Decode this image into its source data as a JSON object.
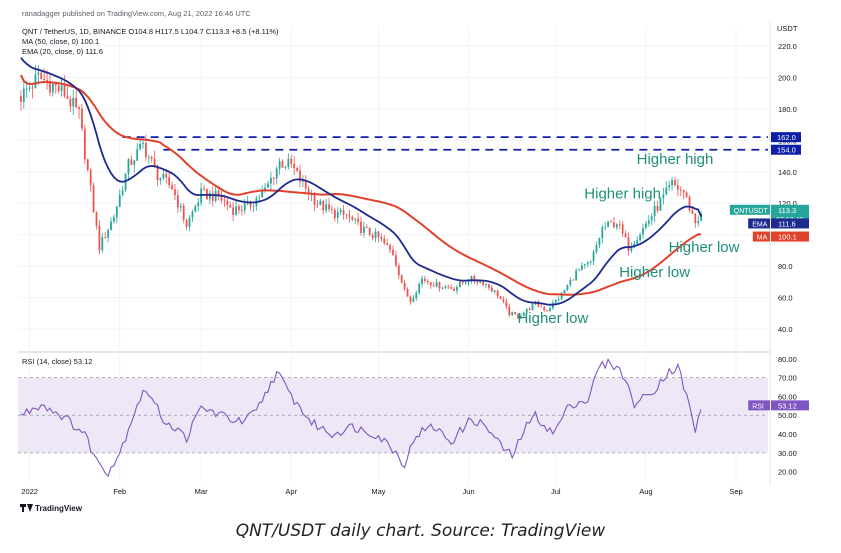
{
  "header": {
    "publisher": "ranadagger published on TradingView.com, Aug 21, 2022 16:46 UTC",
    "symbol_line": "QNT / TetherUS, 1D, BINANCE  O104.8  H117.5  L104.7  C113.3  +8.5 (+8.11%)",
    "ma_line": "MA (50, close, 0)  100.1",
    "ema_line": "EMA (20, close, 0)  111.6",
    "rsi_line": "RSI (14, close)  53.12"
  },
  "caption": "QNT/USDT daily chart. Source: TradingView",
  "logo_text": "TradingView",
  "chart_data": {
    "type": "candlestick",
    "title": "QNT / TetherUS, 1D, BINANCE",
    "currency": "USDT",
    "y_axis_price": {
      "ticks": [
        40.0,
        60.0,
        80.0,
        100.0,
        120.0,
        140.0,
        160.0,
        180.0,
        200.0,
        220.0
      ],
      "tick_labels": [
        "40.0",
        "60.0",
        "80.0",
        "100.0",
        "120.0",
        "140.0",
        "160.0",
        "180.0",
        "200.0",
        "220.0"
      ],
      "range": [
        28,
        232
      ]
    },
    "y_axis_rsi": {
      "ticks": [
        20,
        30,
        40,
        50,
        60,
        70,
        80
      ],
      "tick_labels": [
        "20.00",
        "30.00",
        "40.00",
        "50.00",
        "60.00",
        "70.00",
        "80.00"
      ],
      "range": [
        14,
        82
      ],
      "band": [
        30,
        70
      ]
    },
    "x_axis": {
      "labels": [
        {
          "label": "2022",
          "date": "2022-01-01"
        },
        {
          "label": "Feb",
          "date": "2022-02-01"
        },
        {
          "label": "Mar",
          "date": "2022-03-01"
        },
        {
          "label": "Apr",
          "date": "2022-04-01"
        },
        {
          "label": "May",
          "date": "2022-05-01"
        },
        {
          "label": "Jun",
          "date": "2022-06-01"
        },
        {
          "label": "Jul",
          "date": "2022-07-01"
        },
        {
          "label": "Aug",
          "date": "2022-08-01"
        },
        {
          "label": "Sep",
          "date": "2022-09-01"
        }
      ],
      "range": [
        "2021-12-28",
        "2022-09-12"
      ]
    },
    "price_anchors": [
      [
        "2021-12-29",
        188
      ],
      [
        "2022-01-04",
        200
      ],
      [
        "2022-01-08",
        196
      ],
      [
        "2022-01-13",
        190
      ],
      [
        "2022-01-18",
        176
      ],
      [
        "2022-01-22",
        128
      ],
      [
        "2022-01-25",
        92
      ],
      [
        "2022-01-30",
        112
      ],
      [
        "2022-02-04",
        144
      ],
      [
        "2022-02-09",
        157
      ],
      [
        "2022-02-14",
        138
      ],
      [
        "2022-02-19",
        130
      ],
      [
        "2022-02-24",
        106
      ],
      [
        "2022-03-01",
        126
      ],
      [
        "2022-03-07",
        124
      ],
      [
        "2022-03-12",
        116
      ],
      [
        "2022-03-17",
        118
      ],
      [
        "2022-03-23",
        128
      ],
      [
        "2022-03-28",
        146
      ],
      [
        "2022-04-01",
        144
      ],
      [
        "2022-04-05",
        132
      ],
      [
        "2022-04-10",
        120
      ],
      [
        "2022-04-15",
        114
      ],
      [
        "2022-04-20",
        112
      ],
      [
        "2022-04-25",
        104
      ],
      [
        "2022-05-01",
        98
      ],
      [
        "2022-05-06",
        88
      ],
      [
        "2022-05-10",
        64
      ],
      [
        "2022-05-12",
        58
      ],
      [
        "2022-05-16",
        72
      ],
      [
        "2022-05-21",
        68
      ],
      [
        "2022-05-27",
        66
      ],
      [
        "2022-06-01",
        72
      ],
      [
        "2022-06-06",
        70
      ],
      [
        "2022-06-11",
        62
      ],
      [
        "2022-06-15",
        50
      ],
      [
        "2022-06-18",
        48
      ],
      [
        "2022-06-24",
        56
      ],
      [
        "2022-06-28",
        52
      ],
      [
        "2022-07-03",
        62
      ],
      [
        "2022-07-08",
        76
      ],
      [
        "2022-07-13",
        82
      ],
      [
        "2022-07-17",
        104
      ],
      [
        "2022-07-22",
        108
      ],
      [
        "2022-07-26",
        92
      ],
      [
        "2022-07-31",
        104
      ],
      [
        "2022-08-05",
        118
      ],
      [
        "2022-08-10",
        132
      ],
      [
        "2022-08-14",
        127
      ],
      [
        "2022-08-18",
        108
      ],
      [
        "2022-08-20",
        113.3
      ]
    ],
    "rsi_anchors": [
      [
        "2021-12-29",
        50
      ],
      [
        "2022-01-05",
        56
      ],
      [
        "2022-01-12",
        50
      ],
      [
        "2022-01-20",
        40
      ],
      [
        "2022-01-24",
        26
      ],
      [
        "2022-01-28",
        20
      ],
      [
        "2022-02-01",
        30
      ],
      [
        "2022-02-07",
        56
      ],
      [
        "2022-02-10",
        64
      ],
      [
        "2022-02-16",
        48
      ],
      [
        "2022-02-24",
        38
      ],
      [
        "2022-03-01",
        54
      ],
      [
        "2022-03-08",
        50
      ],
      [
        "2022-03-15",
        46
      ],
      [
        "2022-03-20",
        52
      ],
      [
        "2022-03-27",
        73
      ],
      [
        "2022-04-01",
        60
      ],
      [
        "2022-04-08",
        46
      ],
      [
        "2022-04-15",
        40
      ],
      [
        "2022-04-22",
        44
      ],
      [
        "2022-04-30",
        40
      ],
      [
        "2022-05-05",
        34
      ],
      [
        "2022-05-10",
        24
      ],
      [
        "2022-05-14",
        40
      ],
      [
        "2022-05-20",
        44
      ],
      [
        "2022-05-26",
        36
      ],
      [
        "2022-06-02",
        48
      ],
      [
        "2022-06-07",
        44
      ],
      [
        "2022-06-12",
        34
      ],
      [
        "2022-06-16",
        28
      ],
      [
        "2022-06-20",
        42
      ],
      [
        "2022-06-24",
        50
      ],
      [
        "2022-06-30",
        40
      ],
      [
        "2022-07-06",
        56
      ],
      [
        "2022-07-12",
        58
      ],
      [
        "2022-07-16",
        76
      ],
      [
        "2022-07-20",
        78
      ],
      [
        "2022-07-24",
        72
      ],
      [
        "2022-07-28",
        56
      ],
      [
        "2022-08-03",
        62
      ],
      [
        "2022-08-08",
        72
      ],
      [
        "2022-08-12",
        76
      ],
      [
        "2022-08-15",
        60
      ],
      [
        "2022-08-18",
        42
      ],
      [
        "2022-08-20",
        53.12
      ]
    ],
    "indicators": [
      {
        "name": "EMA (20, close, 0)",
        "last": 111.6,
        "color": "#1e2a8f"
      },
      {
        "name": "MA (50, close, 0)",
        "last": 100.1,
        "color": "#e0422c"
      },
      {
        "name": "RSI (14, close)",
        "last": 53.12,
        "color": "#7e57c2"
      }
    ],
    "horizontal_levels": [
      {
        "value": 162.0,
        "label": "162.0",
        "color": "#0d1fa8"
      },
      {
        "value": 154.0,
        "label": "154.0",
        "color": "#0d1fa8"
      }
    ],
    "price_tags": [
      {
        "label": "QNTUSDT",
        "value": 113.3,
        "sub": "07:13:40",
        "color": "#26a69a"
      },
      {
        "label": "EMA",
        "value": 111.6,
        "color": "#1e2a8f"
      },
      {
        "label": "MA",
        "value": 100.1,
        "color": "#e0422c"
      },
      {
        "label": "RSI",
        "value": 53.12,
        "color": "#7e57c2",
        "pane": "rsi"
      }
    ],
    "annotations": [
      {
        "text": "Higher high",
        "date": "2022-08-11",
        "value": 145
      },
      {
        "text": "Higher high",
        "date": "2022-07-24",
        "value": 123
      },
      {
        "text": "Higher low",
        "date": "2022-08-21",
        "value": 89
      },
      {
        "text": "Higher low",
        "date": "2022-08-04",
        "value": 73
      },
      {
        "text": "Higher low",
        "date": "2022-06-30",
        "value": 44
      }
    ],
    "colors": {
      "up": "#26a69a",
      "down": "#ef5350",
      "annotation": "#1f8f7a",
      "rsi_band": "#ede7f6"
    }
  }
}
